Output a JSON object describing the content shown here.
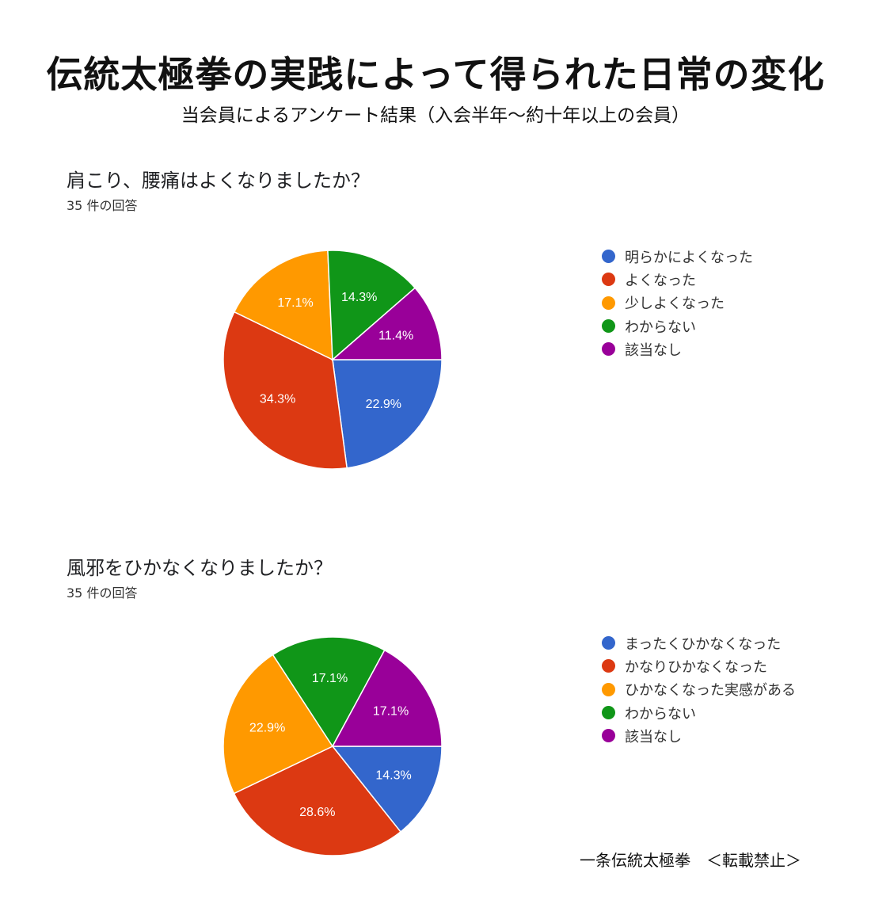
{
  "title": "伝統太極拳の実践によって得られた日常の変化",
  "subtitle": "当会員によるアンケート結果（入会半年～約十年以上の会員）",
  "footer": "一条伝統太極拳　＜転載禁止＞",
  "chart_data": [
    {
      "type": "pie",
      "title": "肩こり、腰痛はよくなりましたか？",
      "response_count": "35 件の回答",
      "legend_position": "right",
      "slices": [
        {
          "label": "明らかによくなった",
          "value": 22.9,
          "value_label": "22.9%",
          "color": "#3366cc"
        },
        {
          "label": "よくなった",
          "value": 34.3,
          "value_label": "34.3%",
          "color": "#dc3912"
        },
        {
          "label": "少しよくなった",
          "value": 17.1,
          "value_label": "17.1%",
          "color": "#ff9900"
        },
        {
          "label": "わからない",
          "value": 14.3,
          "value_label": "14.3%",
          "color": "#109618"
        },
        {
          "label": "該当なし",
          "value": 11.4,
          "value_label": "11.4%",
          "color": "#990099"
        }
      ]
    },
    {
      "type": "pie",
      "title": "風邪をひかなくなりましたか？",
      "response_count": "35 件の回答",
      "legend_position": "right",
      "slices": [
        {
          "label": "まったくひかなくなった",
          "value": 14.3,
          "value_label": "14.3%",
          "color": "#3366cc"
        },
        {
          "label": "かなりひかなくなった",
          "value": 28.6,
          "value_label": "28.6%",
          "color": "#dc3912"
        },
        {
          "label": "ひかなくなった実感がある",
          "value": 22.9,
          "value_label": "22.9%",
          "color": "#ff9900"
        },
        {
          "label": "わからない",
          "value": 17.1,
          "value_label": "17.1%",
          "color": "#109618"
        },
        {
          "label": "該当なし",
          "value": 17.1,
          "value_label": "17.1%",
          "color": "#990099"
        }
      ]
    }
  ]
}
